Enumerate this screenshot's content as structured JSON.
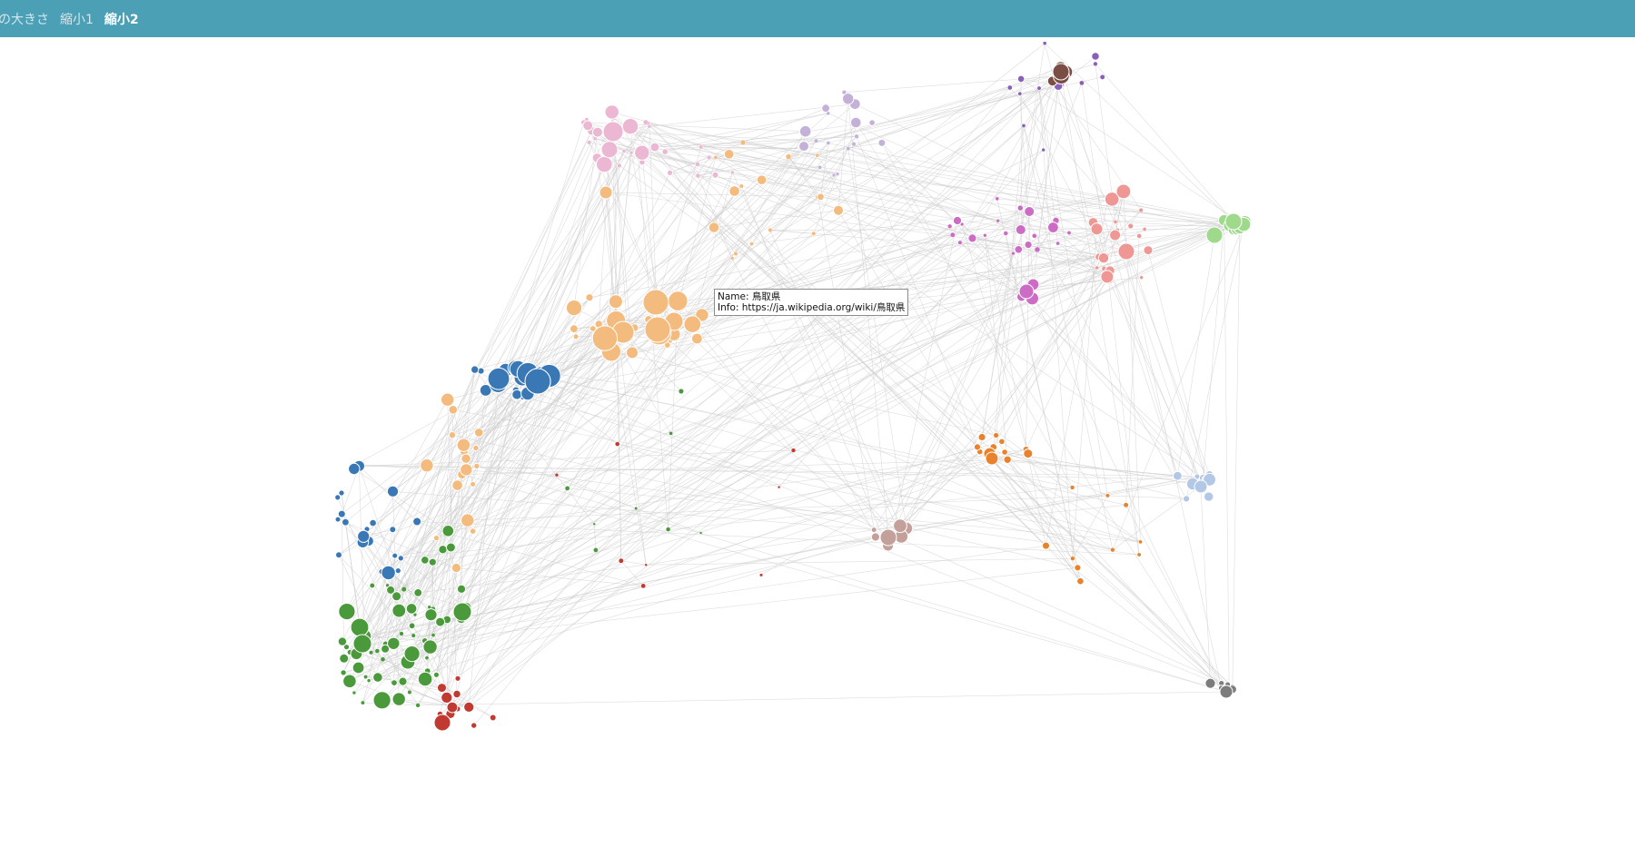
{
  "nav": {
    "items": [
      {
        "label": "の大きさ",
        "active": false
      },
      {
        "label": "縮小1",
        "active": false
      },
      {
        "label": "縮小2",
        "active": true
      }
    ]
  },
  "tooltip": {
    "name_line": "Name: 鳥取県",
    "info_line": "Info: https://ja.wikipedia.org/wiki/鳥取県"
  },
  "colors": {
    "topbar": "#4ca0b6",
    "edge": "#cfcfcf",
    "node_stroke": "#ffffff",
    "clusters": {
      "blue": "#3a78b5",
      "orange_light": "#f4bb7e",
      "green": "#4a9a3c",
      "red": "#c03a32",
      "pink": "#ebb7d2",
      "lavender": "#c4b1d8",
      "brown": "#7a4e44",
      "purple": "#8a5fb8",
      "magenta": "#cc6cc4",
      "salmon": "#ee9794",
      "lightgreen": "#9fd98b",
      "orange": "#e9822c",
      "lightblue": "#b3c7e6",
      "taupe": "#c3a09a",
      "gray": "#7c7c7c"
    }
  }
}
